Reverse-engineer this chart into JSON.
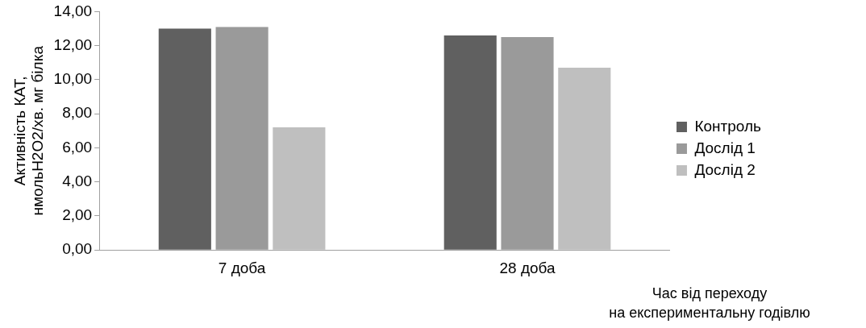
{
  "chart_data": {
    "type": "bar",
    "xlabel": "Час від переходу на експериментальну годівлю",
    "ylabel": "Активність КАТ, нмольН2О2/хв. мг білка",
    "categories": [
      "7 доба",
      "28 доба"
    ],
    "series": [
      {
        "name": "Контроль",
        "color": "#606060",
        "values": [
          13.0,
          12.6
        ]
      },
      {
        "name": "Дослід 1",
        "color": "#9a9a9a",
        "values": [
          13.1,
          12.5
        ]
      },
      {
        "name": "Дослід 2",
        "color": "#bfbfbf",
        "values": [
          7.2,
          10.7
        ]
      }
    ],
    "ylim": [
      0,
      14
    ],
    "yticks": [
      {
        "value": 0,
        "label": "0,00"
      },
      {
        "value": 2,
        "label": "2,00"
      },
      {
        "value": 4,
        "label": "4,00"
      },
      {
        "value": 6,
        "label": "6,00"
      },
      {
        "value": 8,
        "label": "8,00"
      },
      {
        "value": 10,
        "label": "10,00"
      },
      {
        "value": 12,
        "label": "12,00"
      },
      {
        "value": 14,
        "label": "14,00"
      }
    ],
    "grid": false,
    "legend": "right"
  }
}
